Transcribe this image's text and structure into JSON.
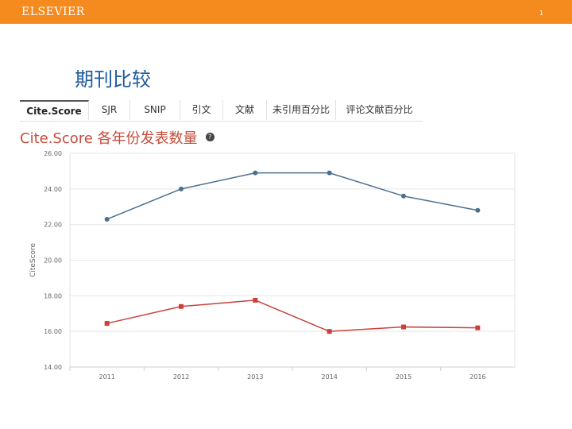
{
  "header": {
    "logo": "ELSEVIER",
    "page_number": "1"
  },
  "slide": {
    "title": "期刊比较"
  },
  "tabs": [
    {
      "label": "Cite.Score",
      "active": true
    },
    {
      "label": "SJR",
      "active": false
    },
    {
      "label": "SNIP",
      "active": false
    },
    {
      "label": "引文",
      "active": false
    },
    {
      "label": "文献",
      "active": false
    },
    {
      "label": "未引用百分比",
      "active": false
    },
    {
      "label": "评论文献百分比",
      "active": false
    }
  ],
  "colors": {
    "topbar": "#f58a1f",
    "series_blue": "#4a6f8f",
    "series_red": "#c8423b",
    "title_red": "#c64b3a",
    "title_blue": "#1c5a9c"
  },
  "chart_data": {
    "type": "line",
    "title": "Cite.Score 各年份发表数量",
    "ylabel": "CiteScore",
    "xlabel": "",
    "x": [
      "2011",
      "2012",
      "2013",
      "2014",
      "2015",
      "2016"
    ],
    "y_ticks": [
      "14.00",
      "16.00",
      "18.00",
      "20.00",
      "22.00",
      "24.00",
      "26.00"
    ],
    "ylim": [
      14,
      26
    ],
    "grid": true,
    "series": [
      {
        "values": [
          22.3,
          24.0,
          24.9,
          24.9,
          23.6,
          22.8
        ],
        "color": "#4a6f8f",
        "marker": "circle"
      },
      {
        "values": [
          16.45,
          17.4,
          17.75,
          16.0,
          16.25,
          16.2
        ],
        "color": "#c8423b",
        "marker": "square"
      }
    ]
  }
}
